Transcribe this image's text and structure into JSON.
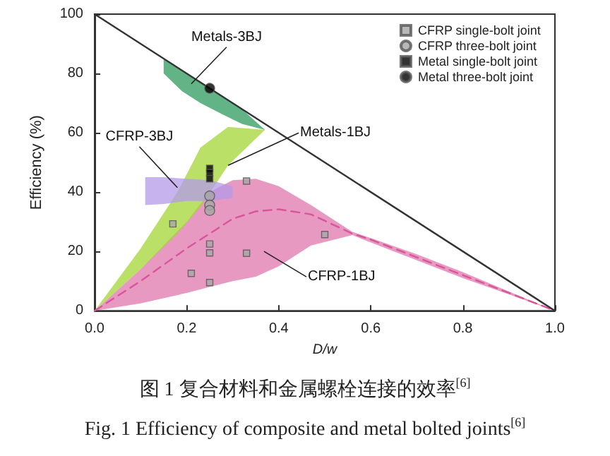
{
  "chart_data": {
    "type": "scatter",
    "title": "图 1  复合材料和金属螺栓连接的效率$^{[6]}$",
    "subtitle": "Fig. 1 Efficiency of composite and metal bolted joints$^{[6]}$",
    "xlabel": "D/w",
    "ylabel": "Efficiency (%)",
    "xlim": [
      0,
      1
    ],
    "ylim": [
      0,
      100
    ],
    "xticks": [
      {
        "value": 0,
        "label": "0.0"
      },
      {
        "value": 0.2,
        "label": "0.2"
      },
      {
        "value": 0.4,
        "label": "0.4"
      },
      {
        "value": 0.6,
        "label": "0.6"
      },
      {
        "value": 0.8,
        "label": "0.8"
      },
      {
        "value": 1,
        "label": "1.0"
      }
    ],
    "yticks": [
      0,
      20,
      40,
      60,
      80,
      100
    ],
    "grid": false,
    "legend": "top right",
    "series": [
      {
        "type": "line",
        "color": "#d9559a",
        "line_style": "dashed",
        "marker": "none",
        "x": [
          0,
          0.1,
          0.2,
          0.25,
          0.3,
          0.35,
          0.4,
          0.47,
          0.56,
          0.6,
          0.7,
          0.8,
          0.9,
          1
        ],
        "values": [
          0,
          10,
          21,
          26,
          31,
          33.5,
          34.2,
          32.5,
          26,
          24,
          18,
          12,
          6,
          0
        ],
        "lower": [
          0,
          2.5,
          6,
          8,
          10,
          11.5,
          15,
          22,
          25.5,
          23,
          17,
          11,
          5.5,
          0
        ],
        "upper": [
          0,
          14,
          30,
          40,
          44,
          44.5,
          42,
          35.6,
          26.6,
          24.5,
          19,
          13,
          6.5,
          0
        ]
      },
      {
        "type": "area",
        "color": "#a4d636",
        "x": [
          0,
          0.1,
          0.18,
          0.23,
          0.29,
          0.37,
          0.29,
          0.23,
          0.18,
          0.1
        ],
        "values": [
          0,
          14,
          26,
          35,
          49,
          61,
          62,
          55,
          40,
          21
        ]
      },
      {
        "type": "area",
        "color": "#b49ae8",
        "x": [
          0.11,
          0.15,
          0.2,
          0.25,
          0.3,
          0.3,
          0.25,
          0.2,
          0.15,
          0.11
        ],
        "values": [
          35.6,
          36,
          37,
          37,
          38,
          42,
          44,
          44.5,
          45,
          45
        ]
      },
      {
        "type": "area",
        "color": "#2e9a5c",
        "x": [
          0.15,
          0.19,
          0.23,
          0.28,
          0.32,
          0.37,
          0.32,
          0.28,
          0.23,
          0.19,
          0.15
        ],
        "values": [
          80,
          74,
          70,
          66,
          63,
          61,
          68,
          72,
          77,
          81,
          85
        ]
      },
      {
        "type": "line",
        "color": "#333333",
        "line_style": "solid",
        "marker": "none",
        "x": [
          0,
          1
        ],
        "values": [
          100,
          0
        ]
      },
      {
        "name": "CFRP single-bolt joint",
        "color": "#a6a6a6",
        "marker": "square",
        "x": [
          0.17,
          0.21,
          0.25,
          0.25,
          0.25,
          0.33,
          0.33,
          0.5
        ],
        "values": [
          29.3,
          12.6,
          9.5,
          22.5,
          19.5,
          43.7,
          19.4,
          25.7
        ]
      },
      {
        "name": "CFRP three-bolt joint",
        "color": "#a6a6a6",
        "marker": "circle",
        "x": [
          0.25,
          0.25,
          0.25
        ],
        "values": [
          38.7,
          35.6,
          33.8
        ]
      },
      {
        "name": "Metal single-bolt joint",
        "color": "#000000",
        "marker": "square",
        "x": [
          0.25,
          0.25,
          0.25
        ],
        "values": [
          48,
          46.5,
          44.5
        ]
      },
      {
        "name": "Metal three-bolt joint",
        "color": "#000000",
        "marker": "circle",
        "x": [
          0.25
        ],
        "values": [
          75
        ]
      }
    ],
    "annotations": [
      {
        "text": "Metals-3BJ",
        "x": 0.21,
        "y": 76.5
      },
      {
        "text": "Metals-1BJ",
        "x": 0.29,
        "y": 49
      },
      {
        "text": "CFRP-3BJ",
        "x": 0.18,
        "y": 41.5
      },
      "CFRP-1BJ"
    ]
  }
}
